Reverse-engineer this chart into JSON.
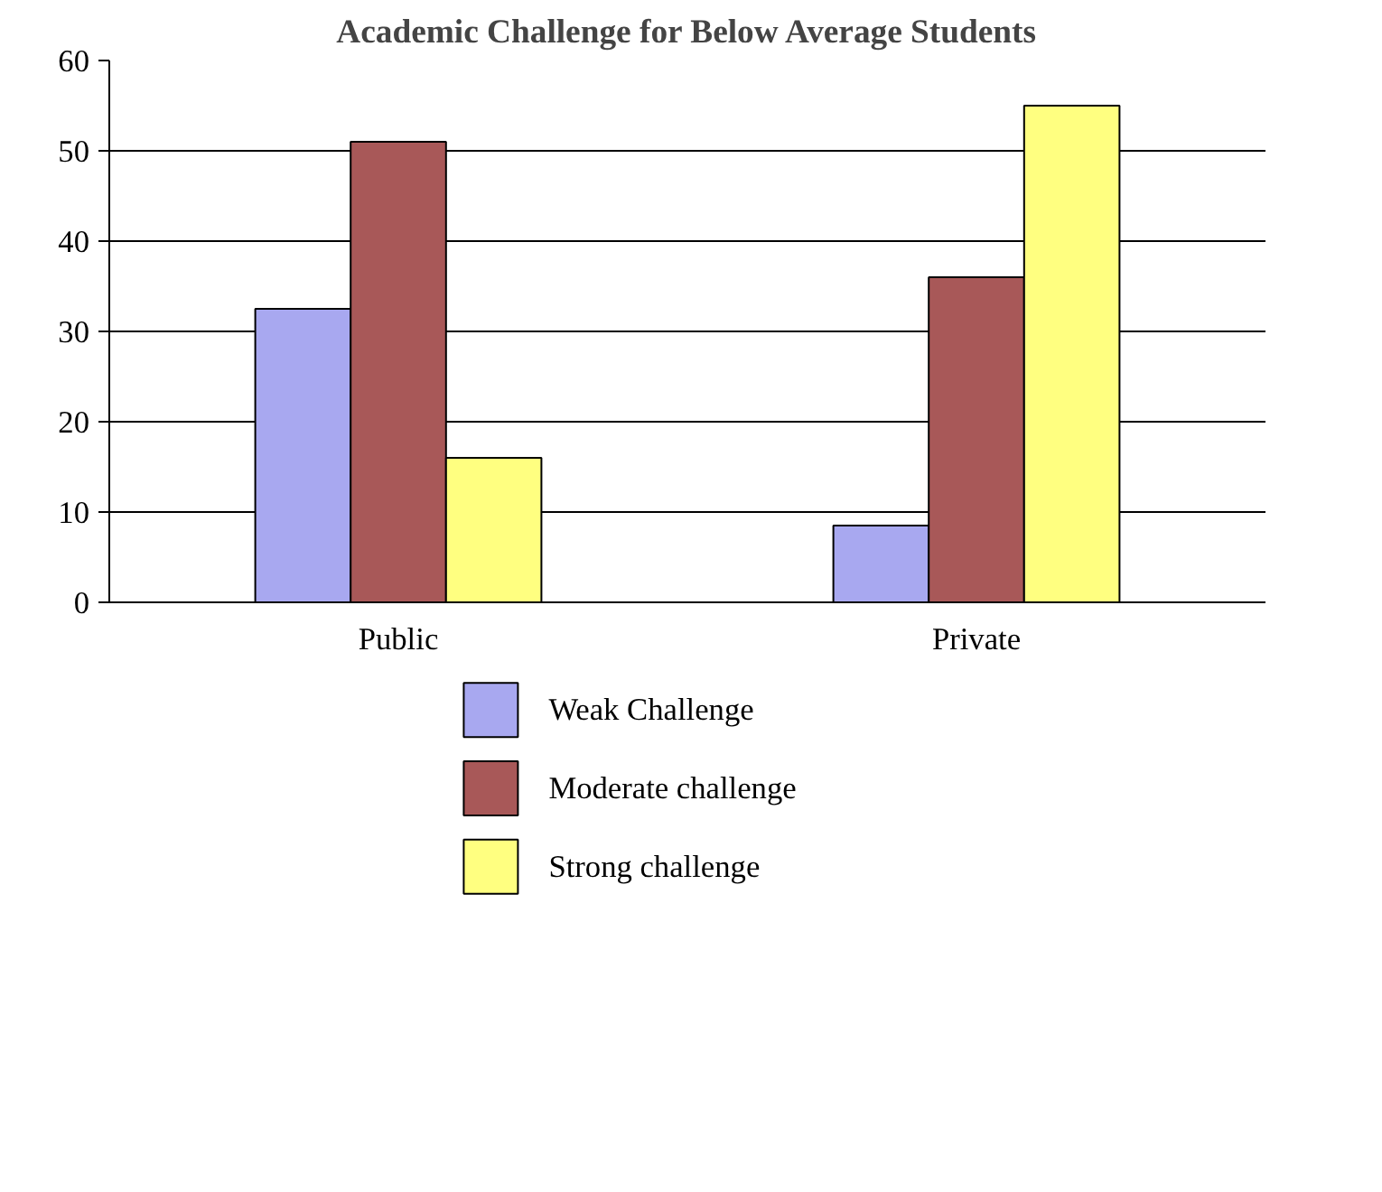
{
  "chart_data": {
    "type": "bar",
    "title": "Academic Challenge for Below Average Students",
    "categories": [
      "Public",
      "Private"
    ],
    "series": [
      {
        "name": "Weak Challenge",
        "color": "#a8a8f0",
        "values": [
          32.5,
          8.5
        ]
      },
      {
        "name": "Moderate challenge",
        "color": "#a85858",
        "values": [
          51,
          36
        ]
      },
      {
        "name": "Strong challenge",
        "color": "#ffff80",
        "values": [
          16,
          55
        ]
      }
    ],
    "ylim": [
      0,
      60
    ],
    "yticks": [
      0,
      10,
      20,
      30,
      40,
      50,
      60
    ],
    "grid": "y",
    "legend": "bottom"
  }
}
